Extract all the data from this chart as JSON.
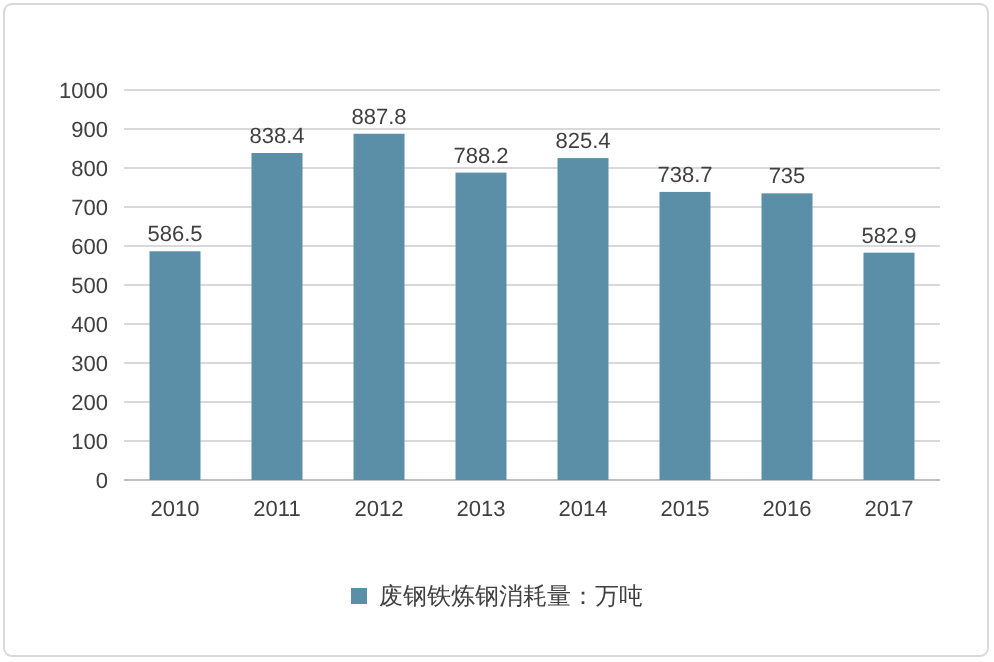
{
  "chart_data": {
    "type": "bar",
    "categories": [
      "2010",
      "2011",
      "2012",
      "2013",
      "2014",
      "2015",
      "2016",
      "2017"
    ],
    "series": [
      {
        "name": "废钢铁炼钢消耗量：万吨",
        "color": "#5b8fa8",
        "values": [
          586.5,
          838.4,
          887.8,
          788.2,
          825.4,
          738.7,
          735,
          582.9
        ]
      }
    ],
    "ylim": [
      0,
      1000
    ],
    "yticks": [
      0,
      100,
      200,
      300,
      400,
      500,
      600,
      700,
      800,
      900,
      1000
    ],
    "grid": "y",
    "legend": "bottom",
    "data_labels": true
  }
}
